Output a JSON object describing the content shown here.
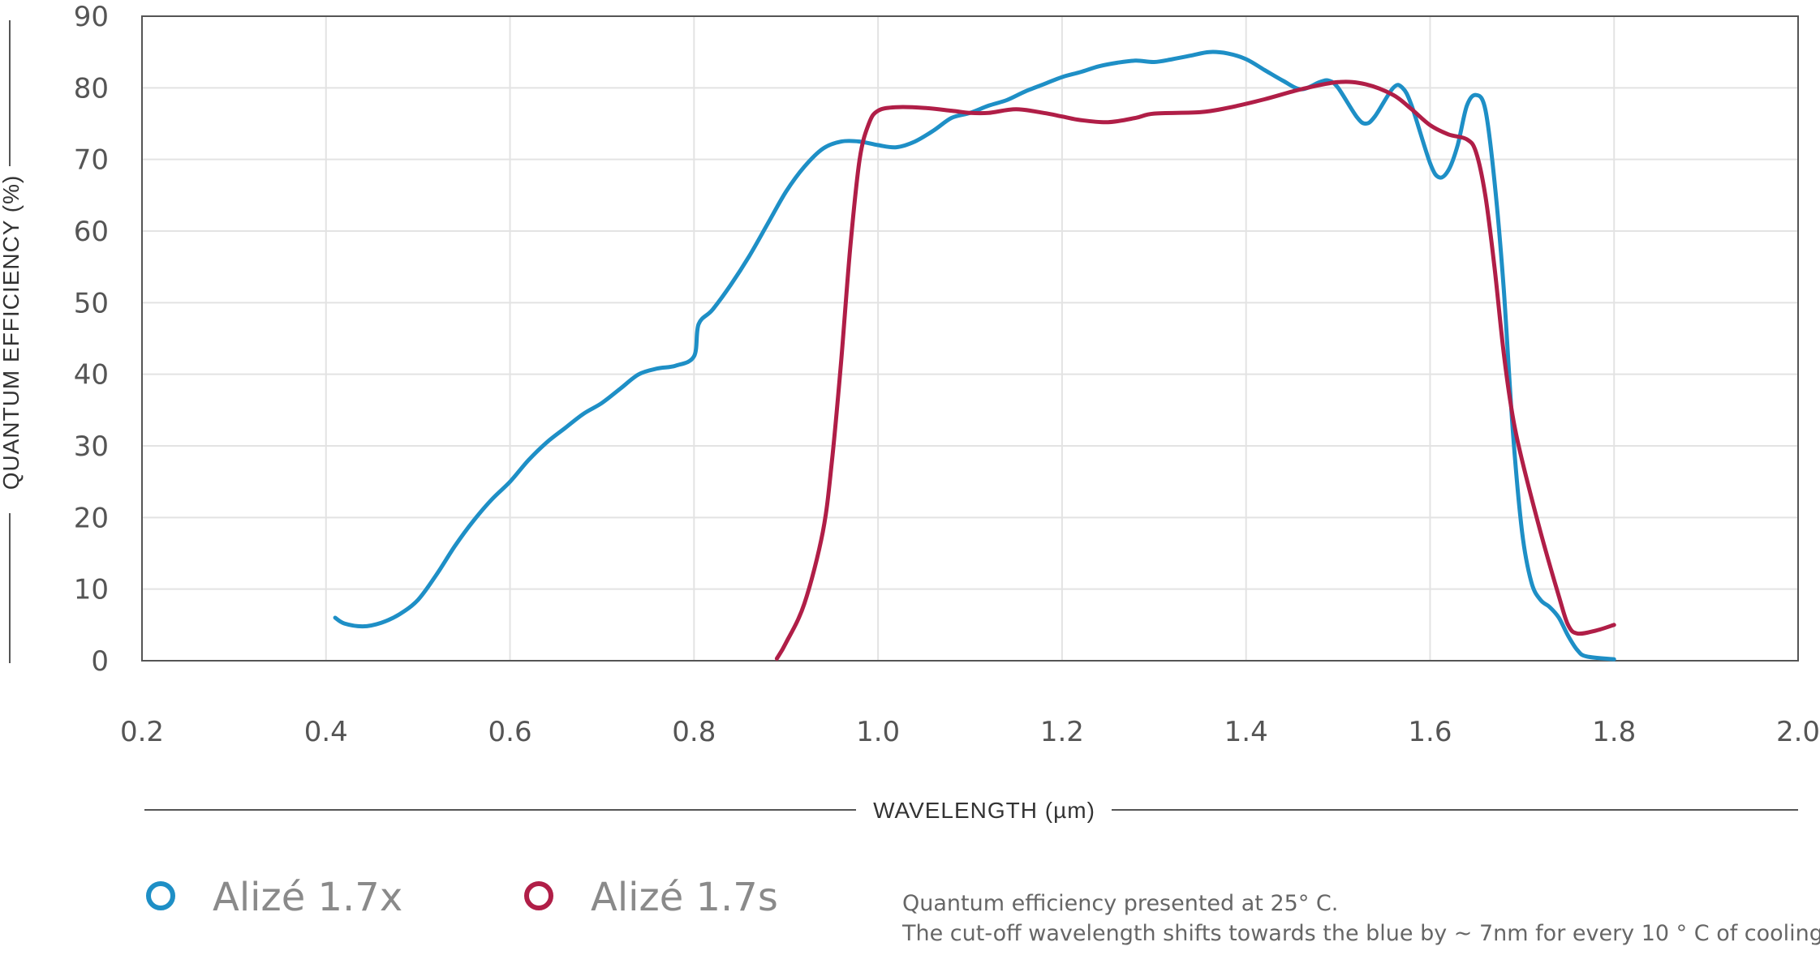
{
  "chart_data": {
    "type": "line",
    "xlabel": "WAVELENGTH (µm)",
    "ylabel": "QUANTUM EFFICIENCY (%)",
    "xlim": [
      0.2,
      2.0
    ],
    "ylim": [
      0,
      90
    ],
    "xticks": [
      "0.2",
      "0.4",
      "0.6",
      "0.8",
      "1.0",
      "1.2",
      "1.4",
      "1.6",
      "1.8",
      "2.0"
    ],
    "yticks": [
      "0",
      "10",
      "20",
      "30",
      "40",
      "50",
      "60",
      "70",
      "80",
      "90"
    ],
    "grid": true,
    "series": [
      {
        "name": "Alizé 1.7x",
        "color": "#1e8fc6",
        "points": [
          [
            0.41,
            6
          ],
          [
            0.42,
            5.2
          ],
          [
            0.44,
            4.8
          ],
          [
            0.46,
            5.3
          ],
          [
            0.48,
            6.5
          ],
          [
            0.5,
            8.5
          ],
          [
            0.52,
            12
          ],
          [
            0.54,
            16
          ],
          [
            0.56,
            19.5
          ],
          [
            0.58,
            22.5
          ],
          [
            0.6,
            25
          ],
          [
            0.62,
            28
          ],
          [
            0.64,
            30.5
          ],
          [
            0.66,
            32.5
          ],
          [
            0.68,
            34.5
          ],
          [
            0.7,
            36
          ],
          [
            0.72,
            38
          ],
          [
            0.74,
            40
          ],
          [
            0.76,
            40.8
          ],
          [
            0.78,
            41.2
          ],
          [
            0.8,
            42.5
          ],
          [
            0.805,
            47
          ],
          [
            0.82,
            49
          ],
          [
            0.84,
            52.5
          ],
          [
            0.86,
            56.5
          ],
          [
            0.88,
            61
          ],
          [
            0.9,
            65.5
          ],
          [
            0.92,
            69
          ],
          [
            0.94,
            71.5
          ],
          [
            0.96,
            72.5
          ],
          [
            0.98,
            72.5
          ],
          [
            1.0,
            72
          ],
          [
            1.02,
            71.7
          ],
          [
            1.04,
            72.5
          ],
          [
            1.06,
            74
          ],
          [
            1.08,
            75.8
          ],
          [
            1.1,
            76.5
          ],
          [
            1.12,
            77.5
          ],
          [
            1.14,
            78.3
          ],
          [
            1.16,
            79.5
          ],
          [
            1.18,
            80.5
          ],
          [
            1.2,
            81.5
          ],
          [
            1.22,
            82.2
          ],
          [
            1.24,
            83
          ],
          [
            1.26,
            83.5
          ],
          [
            1.28,
            83.8
          ],
          [
            1.3,
            83.6
          ],
          [
            1.32,
            84
          ],
          [
            1.34,
            84.5
          ],
          [
            1.36,
            85
          ],
          [
            1.38,
            84.8
          ],
          [
            1.4,
            84
          ],
          [
            1.42,
            82.5
          ],
          [
            1.44,
            81
          ],
          [
            1.46,
            79.8
          ],
          [
            1.48,
            80.8
          ],
          [
            1.49,
            81
          ],
          [
            1.5,
            80
          ],
          [
            1.52,
            76
          ],
          [
            1.53,
            75
          ],
          [
            1.54,
            76
          ],
          [
            1.56,
            80
          ],
          [
            1.57,
            80
          ],
          [
            1.58,
            77.5
          ],
          [
            1.6,
            69.5
          ],
          [
            1.61,
            67.5
          ],
          [
            1.62,
            68.5
          ],
          [
            1.63,
            72
          ],
          [
            1.64,
            77.5
          ],
          [
            1.65,
            79
          ],
          [
            1.66,
            77
          ],
          [
            1.67,
            67
          ],
          [
            1.68,
            52
          ],
          [
            1.69,
            32
          ],
          [
            1.7,
            18
          ],
          [
            1.71,
            11
          ],
          [
            1.72,
            8.5
          ],
          [
            1.73,
            7.5
          ],
          [
            1.74,
            6
          ],
          [
            1.75,
            3.5
          ],
          [
            1.76,
            1.5
          ],
          [
            1.77,
            0.6
          ],
          [
            1.8,
            0.2
          ]
        ]
      },
      {
        "name": "Alizé 1.7s",
        "color": "#b01e47",
        "points": [
          [
            0.89,
            0.3
          ],
          [
            0.9,
            2.5
          ],
          [
            0.92,
            8
          ],
          [
            0.94,
            18
          ],
          [
            0.95,
            28
          ],
          [
            0.96,
            42
          ],
          [
            0.97,
            58
          ],
          [
            0.98,
            70
          ],
          [
            0.99,
            75
          ],
          [
            1.0,
            76.8
          ],
          [
            1.02,
            77.3
          ],
          [
            1.05,
            77.2
          ],
          [
            1.08,
            76.8
          ],
          [
            1.1,
            76.5
          ],
          [
            1.12,
            76.5
          ],
          [
            1.15,
            77
          ],
          [
            1.18,
            76.5
          ],
          [
            1.2,
            76
          ],
          [
            1.22,
            75.5
          ],
          [
            1.25,
            75.2
          ],
          [
            1.28,
            75.8
          ],
          [
            1.3,
            76.4
          ],
          [
            1.35,
            76.6
          ],
          [
            1.38,
            77.2
          ],
          [
            1.42,
            78.4
          ],
          [
            1.46,
            79.8
          ],
          [
            1.5,
            80.8
          ],
          [
            1.53,
            80.5
          ],
          [
            1.56,
            79
          ],
          [
            1.58,
            77
          ],
          [
            1.6,
            74.8
          ],
          [
            1.62,
            73.5
          ],
          [
            1.64,
            72.8
          ],
          [
            1.65,
            71
          ],
          [
            1.66,
            65
          ],
          [
            1.67,
            55
          ],
          [
            1.68,
            43
          ],
          [
            1.69,
            34
          ],
          [
            1.7,
            28
          ],
          [
            1.72,
            18
          ],
          [
            1.74,
            9
          ],
          [
            1.75,
            5
          ],
          [
            1.76,
            3.8
          ],
          [
            1.78,
            4.2
          ],
          [
            1.8,
            5
          ]
        ]
      }
    ],
    "notes": [
      "Quantum efficiency presented at 25° C.",
      "The cut-off wavelength shifts towards the blue by ~ 7nm for every 10 ° C of cooling."
    ]
  },
  "legend": [
    {
      "label": "Alizé 1.7x",
      "color": "#1e8fc6"
    },
    {
      "label": "Alizé 1.7s",
      "color": "#b01e47"
    }
  ]
}
